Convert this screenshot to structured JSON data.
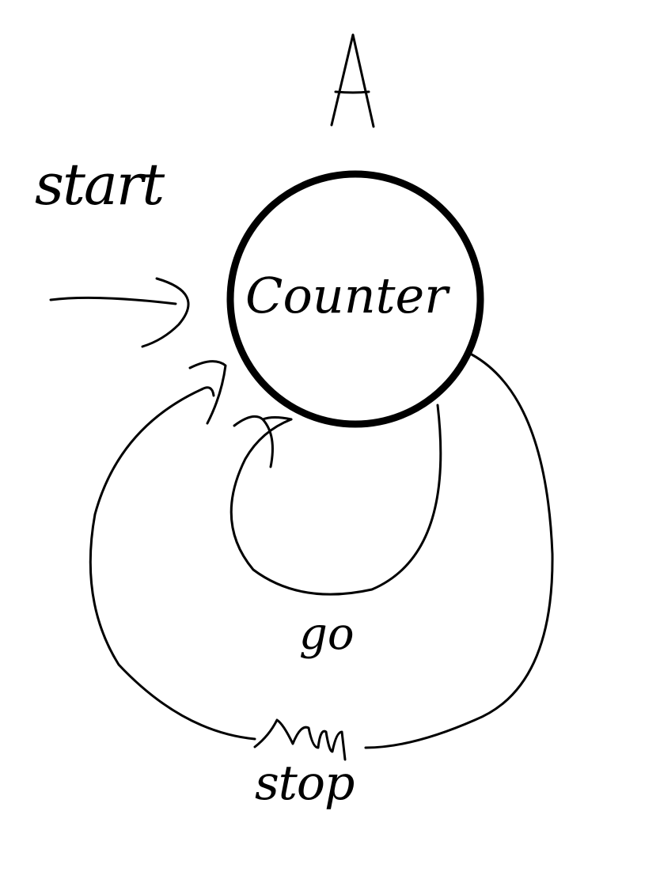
{
  "diagram": {
    "title": "A",
    "start_label": "start",
    "state": {
      "label": "Counter"
    },
    "transitions": {
      "go": "go",
      "stop": "stop"
    }
  },
  "colors": {
    "ink": "#000000",
    "background": "#ffffff"
  }
}
